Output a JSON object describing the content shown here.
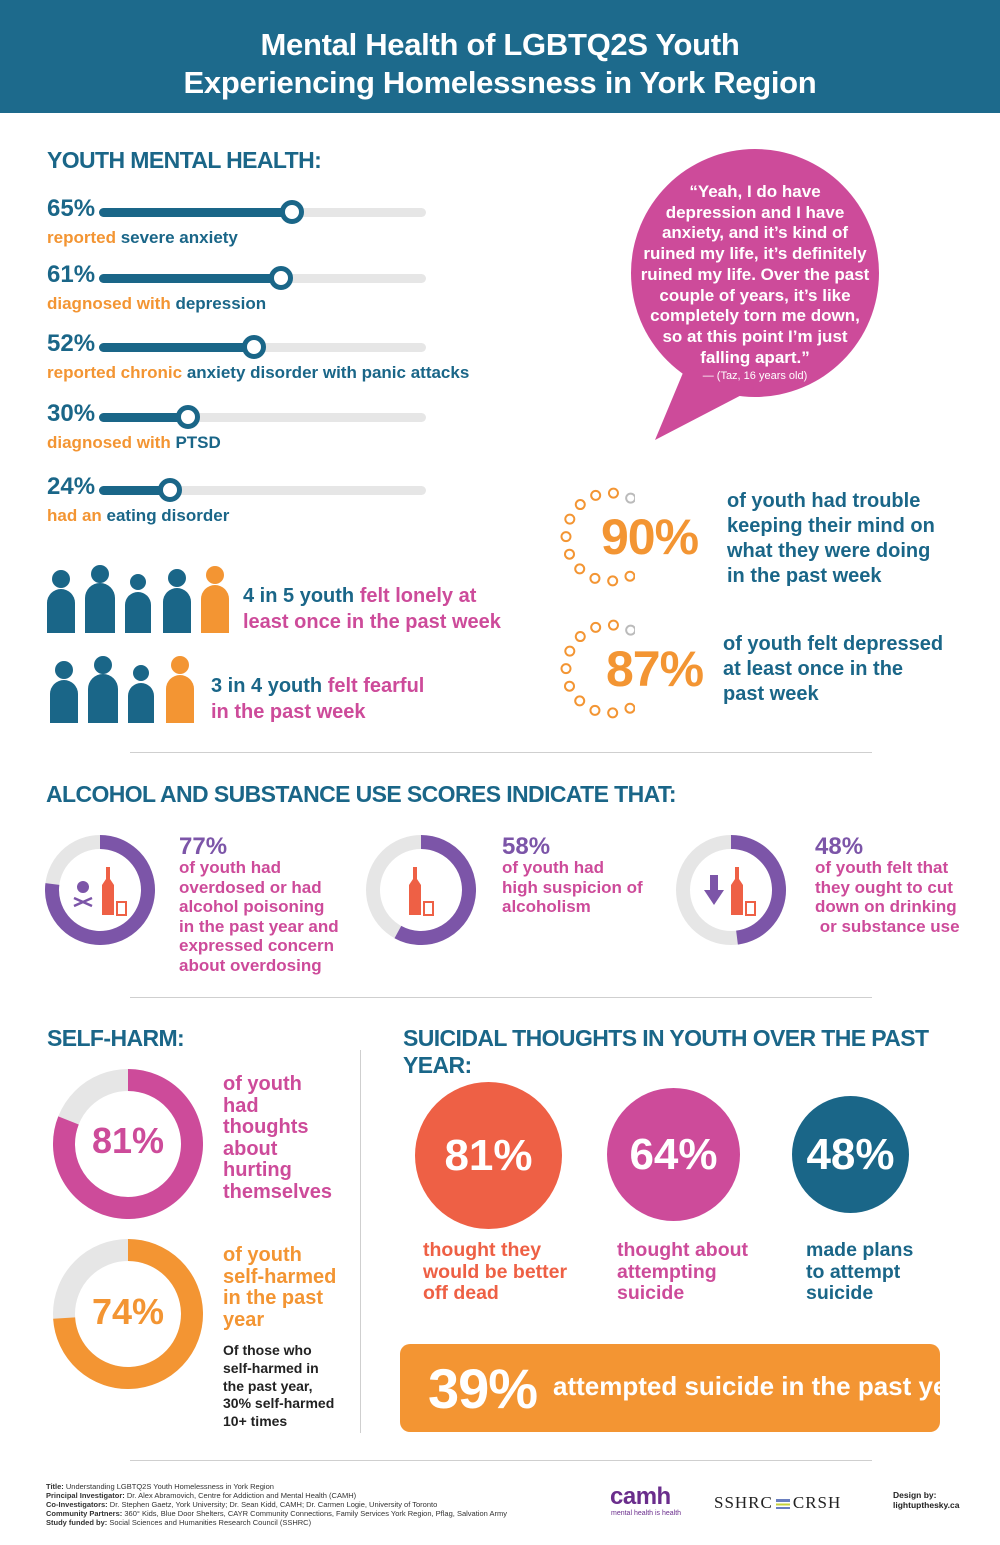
{
  "header": {
    "line1": "Mental Health of LGBTQ2S Youth",
    "line2": "Experiencing Homelessness in York Region"
  },
  "mental_health": {
    "title": "YOUTH MENTAL HEALTH:",
    "bars": [
      {
        "pct": "65%",
        "value": 0.65,
        "lead": "reported ",
        "rest": "severe anxiety"
      },
      {
        "pct": "61%",
        "value": 0.61,
        "lead": "diagnosed with ",
        "rest": "depression"
      },
      {
        "pct": "52%",
        "value": 0.52,
        "lead": "reported chronic ",
        "rest": "anxiety disorder with panic attacks"
      },
      {
        "pct": "30%",
        "value": 0.3,
        "lead": "diagnosed with ",
        "rest": "PTSD"
      },
      {
        "pct": "24%",
        "value": 0.24,
        "lead": "had an ",
        "rest": "eating disorder"
      }
    ],
    "lonely": {
      "a": "4 in 5 youth ",
      "b": "felt lonely at",
      "c": "least once in the past week"
    },
    "fearful": {
      "a": "3 in 4 youth ",
      "b": "felt fearful",
      "c": "in the past week"
    },
    "quote": {
      "lines": [
        "“Yeah, I do have",
        "depression and I have",
        "anxiety, and it’s kind of",
        "ruined my life, it’s definitely",
        "ruined my life. Over the past",
        "couple of years, it’s like",
        "completely torn me down,",
        "so at this point I’m just",
        "falling apart.”"
      ],
      "attribution": "— (Taz, 16 years old)"
    },
    "trouble": {
      "pct": "90%",
      "lines": [
        "of youth had trouble",
        "keeping their mind on",
        "what they were doing",
        "in the past week"
      ]
    },
    "depressed": {
      "pct": "87%",
      "lines": [
        "of youth felt depressed",
        "at least once in the",
        "past week"
      ]
    }
  },
  "substance": {
    "title": "ALCOHOL AND SUBSTANCE USE SCORES INDICATE THAT:",
    "items": [
      {
        "pct": "77%",
        "value": 0.77,
        "icon": "skull-bottle-icon",
        "lines": [
          "of youth had",
          "overdosed or had",
          "alcohol poisoning",
          "in the past year and",
          "expressed concern",
          "about overdosing"
        ]
      },
      {
        "pct": "58%",
        "value": 0.58,
        "icon": "bottle-glass-icon",
        "lines": [
          "of youth had",
          "high suspicion of",
          "alcoholism"
        ]
      },
      {
        "pct": "48%",
        "value": 0.48,
        "icon": "down-arrow-bottle-icon",
        "lines": [
          "of youth felt that",
          "they ought to cut",
          "down on drinking",
          " or substance use"
        ]
      }
    ]
  },
  "self_harm": {
    "title": "SELF-HARM:",
    "thoughts": {
      "pct": "81%",
      "value": 0.81,
      "lines": [
        "of youth",
        "had",
        "thoughts",
        "about",
        "hurting",
        "themselves"
      ]
    },
    "harmed": {
      "pct": "74%",
      "value": 0.74,
      "lines": [
        "of youth",
        "self-harmed",
        "in the past",
        "year"
      ]
    },
    "note": [
      "Of those who",
      "self-harmed in",
      "the past year,",
      "30% self-harmed",
      "10+ times"
    ]
  },
  "suicidal": {
    "title": "SUICIDAL THOUGHTS IN YOUTH OVER THE PAST YEAR:",
    "circles": [
      {
        "pct": "81%",
        "color": "#ee6045",
        "lines": [
          "thought they",
          "would be better",
          "off dead"
        ]
      },
      {
        "pct": "64%",
        "color": "#cd4b9a",
        "lines": [
          "thought about",
          "attempting",
          "suicide"
        ]
      },
      {
        "pct": "48%",
        "color": "#1a6688",
        "lines": [
          "made plans",
          "to attempt",
          "suicide"
        ]
      }
    ],
    "attempted": {
      "pct": "39%",
      "text": "attempted suicide in the past year"
    }
  },
  "footer": {
    "rows": [
      {
        "label": "Title:",
        "text": " Understanding LGBTQ2S Youth Homelessness in York Region"
      },
      {
        "label": "Principal Investigator:",
        "text": " Dr. Alex Abramovich, Centre for Addiction and Mental Health (CAMH)"
      },
      {
        "label": "Co-Investigators:",
        "text": " Dr. Stephen Gaetz, York University; Dr. Sean Kidd, CAMH; Dr. Carmen Logie, University of Toronto"
      },
      {
        "label": "Community Partners:",
        "text": " 360° Kids, Blue Door Shelters, CAYR Community Connections, Family Services York Region, Pflag, Salvation Army"
      },
      {
        "label": "Study funded by:",
        "text": " Social Sciences and Humanities Research Council (SSHRC)"
      }
    ],
    "camh": "camh",
    "camh_tag": "mental health is health",
    "sshrc_left": "SSHRC",
    "sshrc_right": "CRSH",
    "design_by": "Design by:",
    "design_site": "lightupthesky.ca"
  },
  "colors": {
    "teal": "#1a6688",
    "orange": "#f39533",
    "pink": "#cd4b9a",
    "purple": "#7c55a8",
    "coral": "#ee6045",
    "header": "#1d6a8c"
  }
}
